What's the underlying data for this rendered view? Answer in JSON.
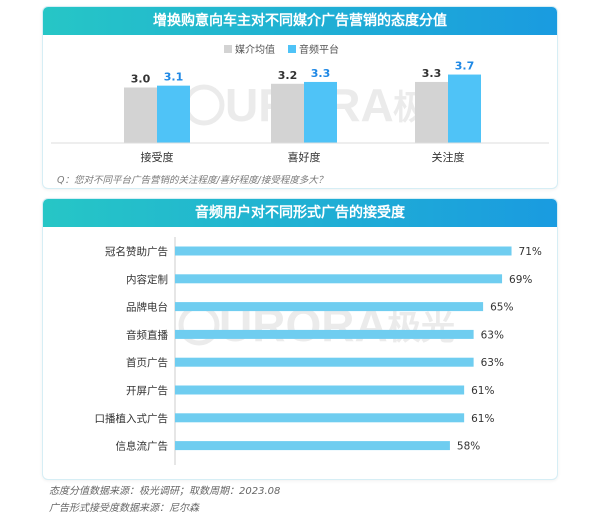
{
  "panel1": {
    "title": "增换购意向车主对不同媒介广告营销的态度分值",
    "question": "Q：您对不同平台广告营销的关注程度/喜好程度/接受程度多大？"
  },
  "panel2": {
    "title": "音频用户对不同形式广告的接受度"
  },
  "watermark": {
    "text": "URORA",
    "cn": "极光"
  },
  "footnotes": {
    "line1": "态度分值数据来源：极光调研；取数周期：2023.08",
    "line2": "广告形式接受度数据来源：尼尔森"
  },
  "colors": {
    "gray_bar": "#d3d3d3",
    "blue_bar": "#4fc3f7",
    "blue_value": "#1e88e5",
    "hbar": "#6fcdf0"
  },
  "chart_data": [
    {
      "type": "bar",
      "categories": [
        "接受度",
        "喜好度",
        "关注度"
      ],
      "series": [
        {
          "name": "媒介均值",
          "values": [
            3.0,
            3.2,
            3.3
          ]
        },
        {
          "name": "音频平台",
          "values": [
            3.1,
            3.3,
            3.7
          ]
        }
      ],
      "value_labels": {
        "s0": [
          "3.0",
          "3.2",
          "3.3"
        ],
        "s1": [
          "3.1",
          "3.3",
          "3.7"
        ]
      },
      "legend_position": "top",
      "grid": false
    },
    {
      "type": "bar",
      "orientation": "horizontal",
      "categories": [
        "冠名赞助广告",
        "内容定制",
        "品牌电台",
        "音频直播",
        "首页广告",
        "开屏广告",
        "口播植入式广告",
        "信息流广告"
      ],
      "values": [
        71,
        69,
        65,
        63,
        63,
        61,
        61,
        58
      ],
      "value_labels": [
        "71%",
        "69%",
        "65%",
        "63%",
        "63%",
        "61%",
        "61%",
        "58%"
      ],
      "grid": false
    }
  ]
}
